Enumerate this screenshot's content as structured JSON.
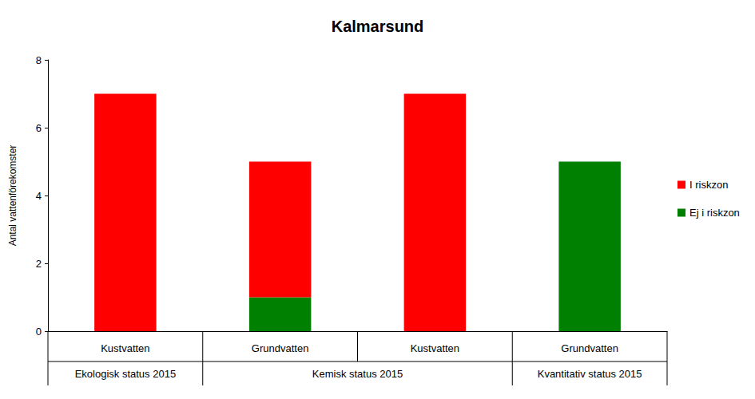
{
  "chart_data": {
    "type": "bar",
    "title": "Kalmarsund",
    "y_label": "Antal vattenförekomster",
    "categories": [
      "Kustvatten",
      "Grundvatten",
      "Kustvatten",
      "Grundvatten"
    ],
    "category_groups": [
      "Ekologisk status 2015",
      "Kemisk status 2015",
      "Kemisk status 2015",
      "Kvantitativ status 2015"
    ],
    "series": [
      {
        "name": "I riskzon",
        "color": "#ff0000",
        "values": [
          7,
          4,
          7,
          0
        ]
      },
      {
        "name": "Ej i riskzon",
        "color": "#008000",
        "values": [
          0,
          1,
          0,
          5
        ]
      }
    ],
    "stacked": true,
    "ylim": [
      0,
      8
    ],
    "yticks": [
      0,
      2,
      4,
      6,
      8
    ],
    "grid": false,
    "legend": "right"
  }
}
